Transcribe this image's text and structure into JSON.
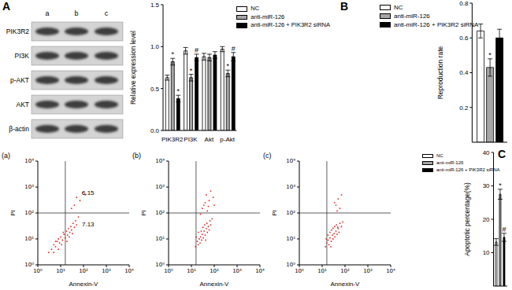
{
  "panel_labels": [
    "A",
    "B",
    "C"
  ],
  "blot": {
    "lanes": [
      "a",
      "b",
      "c"
    ],
    "rows": [
      "PIK3R2",
      "PI3K",
      "p-AKT",
      "AKT",
      "β-actin"
    ]
  },
  "chart_data": [
    {
      "type": "bar",
      "y_label": "Relative expression level",
      "categories": [
        "PIK3R2",
        "PI3K",
        "Akt",
        "p-Akt"
      ],
      "series": [
        {
          "name": "NC",
          "color": "#ffffff",
          "values": [
            0.63,
            0.95,
            0.88,
            0.97
          ],
          "errors": [
            0.03,
            0.04,
            0.04,
            0.03
          ],
          "annotations": [
            null,
            null,
            null,
            null
          ]
        },
        {
          "name": "anti-miR-126",
          "color": "#a6a6a6",
          "values": [
            0.82,
            0.63,
            0.87,
            0.68
          ],
          "errors": [
            0.04,
            0.04,
            0.04,
            0.04
          ],
          "annotations": [
            "*",
            "*",
            null,
            "*"
          ]
        },
        {
          "name": "anti-miR-126 + PIK3R2 siRNA",
          "color": "#000000",
          "values": [
            0.38,
            0.87,
            0.9,
            0.88
          ],
          "errors": [
            0.04,
            0.04,
            0.04,
            0.05
          ],
          "annotations": [
            "*",
            "#",
            null,
            "#"
          ]
        }
      ],
      "ylim": [
        0,
        1.5
      ],
      "yticks": [
        {
          "value": 0,
          "label": "0.0"
        },
        0.5,
        {
          "value": 1,
          "label": "1.0"
        },
        1.5
      ],
      "legend": "upper right"
    },
    {
      "type": "bar",
      "y_label": "Reproduction rate",
      "categories": [
        null
      ],
      "series": [
        {
          "name": "NC",
          "color": "#ffffff",
          "values": [
            0.64
          ],
          "errors": [
            0.04
          ],
          "annotations": [
            null
          ]
        },
        {
          "name": "anti-miR-126",
          "color": "#a6a6a6",
          "values": [
            0.43
          ],
          "errors": [
            0.05
          ],
          "annotations": [
            "*"
          ]
        },
        {
          "name": "anti-miR-126 + PIK3R2 siRNA",
          "color": "#000000",
          "values": [
            0.6
          ],
          "errors": [
            0.05
          ],
          "annotations": [
            null
          ]
        }
      ],
      "ylim": [
        0,
        0.8
      ],
      "yticks": [
        {
          "value": 0,
          "label": "0.0"
        },
        0.2,
        0.4,
        0.6,
        0.8
      ],
      "legend": "upper left",
      "tick_labels": "y"
    },
    {
      "type": "scatter",
      "title": "(a)",
      "x_label": "Annexin-V",
      "y_label": "PI",
      "log": true,
      "color": "#e3261f",
      "x": [
        3,
        4,
        5,
        6,
        7,
        8,
        9,
        10,
        12,
        14,
        16,
        18,
        20,
        22,
        25,
        28,
        30,
        35,
        40,
        45,
        5,
        6,
        8,
        11,
        13,
        19,
        24,
        33,
        50,
        60,
        40,
        50,
        70,
        90,
        30,
        120
      ],
      "values": [
        3,
        4,
        6,
        5,
        8,
        10,
        7,
        12,
        9,
        15,
        11,
        20,
        14,
        25,
        18,
        30,
        22,
        40,
        28,
        50,
        3,
        8,
        4,
        6,
        18,
        8,
        12,
        16,
        35,
        70,
        200,
        400,
        300,
        600,
        150,
        500
      ],
      "xlim": [
        1,
        10000
      ],
      "ylim": [
        1,
        10000
      ],
      "xticks": [
        {
          "value": 1,
          "label": "10⁰"
        },
        {
          "value": 10,
          "label": "10¹"
        },
        {
          "value": 100,
          "label": "10²"
        },
        {
          "value": 1000,
          "label": "10³"
        },
        {
          "value": 10000,
          "label": "10⁴"
        }
      ],
      "yticks": [
        {
          "value": 1,
          "label": "10⁰"
        },
        {
          "value": 10,
          "label": "10¹"
        },
        {
          "value": 100,
          "label": "10²"
        },
        {
          "value": 1000,
          "label": "10³"
        },
        {
          "value": 10000,
          "label": "10⁴"
        }
      ],
      "gates": {
        "x": 16,
        "y": 100
      },
      "quadrant_values": {
        "upper_right": 6.15,
        "lower_right": 7.13
      }
    },
    {
      "type": "scatter",
      "title": "(b)",
      "x_label": "Annexin-V",
      "y_label": "PI",
      "log": true,
      "color": "#e3261f",
      "x": [
        15,
        18,
        20,
        22,
        25,
        28,
        30,
        33,
        36,
        40,
        45,
        50,
        55,
        60,
        16,
        20,
        24,
        27,
        32,
        38,
        42,
        48,
        65,
        70,
        80,
        30,
        40,
        50,
        60,
        45,
        35,
        55,
        25,
        90,
        100,
        70
      ],
      "values": [
        5,
        8,
        6,
        10,
        12,
        9,
        15,
        11,
        20,
        14,
        25,
        18,
        30,
        22,
        12,
        18,
        7,
        20,
        28,
        35,
        9,
        40,
        50,
        35,
        60,
        150,
        250,
        120,
        300,
        500,
        200,
        180,
        90,
        400,
        200,
        700
      ],
      "xlim": [
        1,
        10000
      ],
      "ylim": [
        1,
        10000
      ],
      "xticks": [
        {
          "value": 1,
          "label": "10⁰"
        },
        {
          "value": 10,
          "label": "10¹"
        },
        {
          "value": 100,
          "label": "10²"
        },
        {
          "value": 1000,
          "label": "10³"
        },
        {
          "value": 10000,
          "label": "10⁴"
        }
      ],
      "yticks": [
        {
          "value": 1,
          "label": "10⁰"
        },
        {
          "value": 10,
          "label": "10¹"
        },
        {
          "value": 100,
          "label": "10²"
        },
        {
          "value": 1000,
          "label": "10³"
        },
        {
          "value": 10000,
          "label": "10⁴"
        }
      ],
      "gates": {
        "x": 16,
        "y": 100
      }
    },
    {
      "type": "scatter",
      "title": "(c)",
      "x_label": "Annexin-V",
      "y_label": "PI",
      "log": true,
      "color": "#e3261f",
      "x": [
        14,
        16,
        18,
        20,
        22,
        25,
        28,
        30,
        33,
        36,
        40,
        45,
        50,
        55,
        18,
        22,
        26,
        30,
        35,
        42,
        48,
        60,
        70,
        15,
        24,
        80,
        40,
        50,
        60,
        35,
        70,
        45
      ],
      "values": [
        5,
        7,
        9,
        6,
        11,
        8,
        14,
        10,
        16,
        12,
        20,
        15,
        25,
        18,
        14,
        18,
        22,
        26,
        30,
        35,
        28,
        40,
        30,
        10,
        5,
        45,
        200,
        350,
        150,
        250,
        500,
        120
      ],
      "xlim": [
        1,
        10000
      ],
      "ylim": [
        1,
        10000
      ],
      "xticks": [
        {
          "value": 1,
          "label": "10⁰"
        },
        {
          "value": 10,
          "label": "10¹"
        },
        {
          "value": 100,
          "label": "10²"
        },
        {
          "value": 1000,
          "label": "10³"
        },
        {
          "value": 10000,
          "label": "10⁴"
        }
      ],
      "yticks": [
        {
          "value": 1,
          "label": "10⁰"
        },
        {
          "value": 10,
          "label": "10¹"
        },
        {
          "value": 100,
          "label": "10²"
        },
        {
          "value": 1000,
          "label": "10³"
        },
        {
          "value": 10000,
          "label": "10⁴"
        }
      ],
      "gates": {
        "x": 16,
        "y": 100
      }
    },
    {
      "type": "bar",
      "y_label": "Apoptotic percentage(%)",
      "categories": [
        null
      ],
      "series": [
        {
          "name": "NC",
          "color": "#ffffff",
          "values": [
            13.2
          ],
          "errors": [
            1.0
          ],
          "annotations": [
            null
          ]
        },
        {
          "name": "anti-miR-126",
          "color": "#a6a6a6",
          "values": [
            27.5
          ],
          "errors": [
            1.5
          ],
          "annotations": [
            "*"
          ]
        },
        {
          "name": "anti-miR-126 + PIK3R2 siRNA",
          "color": "#000000",
          "values": [
            14.6
          ],
          "errors": [
            1.2
          ],
          "annotations": [
            "#"
          ]
        }
      ],
      "ylim": [
        0,
        40
      ],
      "yticks": [
        0,
        10,
        20,
        30,
        40
      ],
      "legend": "upper left",
      "tick_labels": "y"
    }
  ]
}
